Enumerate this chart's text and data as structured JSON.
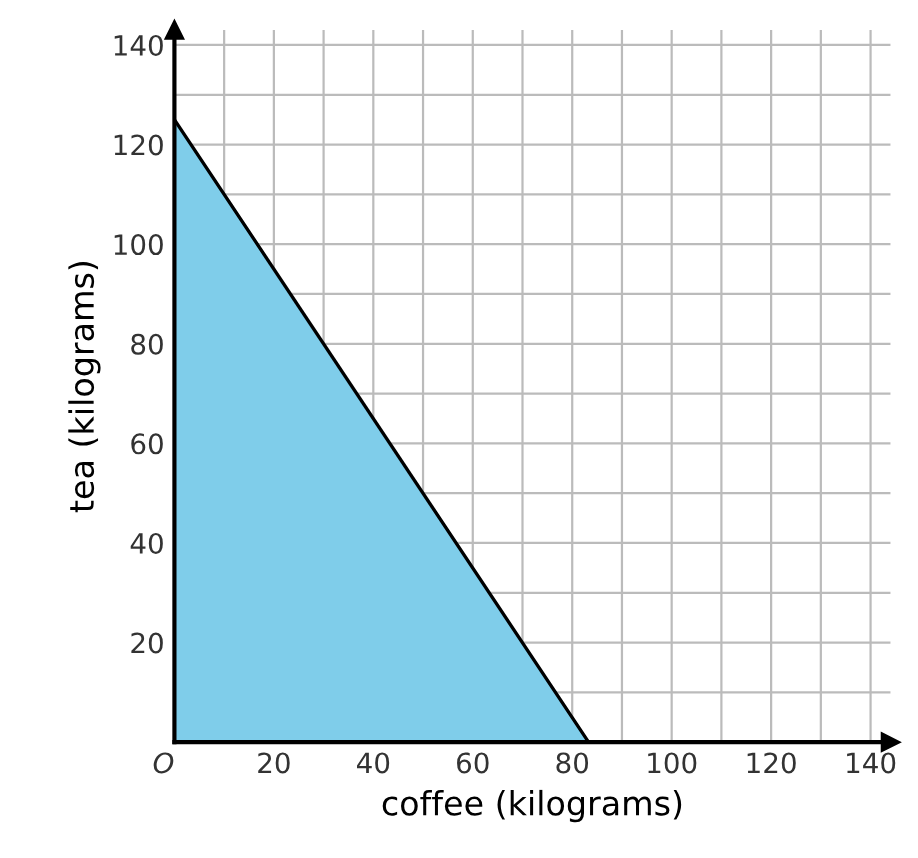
{
  "chart_data": {
    "type": "area",
    "xlabel": "coffee (kilograms)",
    "ylabel": "tea (kilograms)",
    "x": [
      0,
      83.3
    ],
    "series": [
      {
        "color": "#7fcdea",
        "values": [
          125,
          0
        ]
      }
    ],
    "xlim": [
      0,
      144
    ],
    "ylim": [
      0,
      143
    ],
    "xticks": [
      {
        "value": 0,
        "label": "O"
      },
      {
        "value": 10,
        "label": null
      },
      20,
      {
        "value": 30,
        "label": null
      },
      40,
      {
        "value": 50,
        "label": null
      },
      60,
      {
        "value": 70,
        "label": null
      },
      80,
      {
        "value": 90,
        "label": null
      },
      100,
      {
        "value": 110,
        "label": null
      },
      120,
      {
        "value": 130,
        "label": null
      },
      140
    ],
    "yticks": [
      {
        "value": 10,
        "label": null
      },
      20,
      {
        "value": 30,
        "label": null
      },
      40,
      {
        "value": 50,
        "label": null
      },
      60,
      {
        "value": 70,
        "label": null
      },
      80,
      {
        "value": 90,
        "label": null
      },
      100,
      {
        "value": 110,
        "label": null
      },
      120,
      {
        "value": 130,
        "label": null
      },
      140
    ],
    "grid": true,
    "legend": false
  }
}
